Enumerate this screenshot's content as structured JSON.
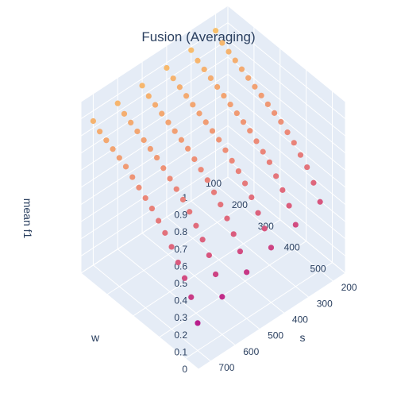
{
  "chart_data": {
    "type": "scatter3d",
    "title": "Fusion (Averaging)",
    "axes": {
      "x": {
        "label": "w",
        "range": [
          100,
          550
        ],
        "ticks": [
          "100",
          "200",
          "300",
          "400",
          "500"
        ],
        "tick_values": [
          100,
          200,
          300,
          400,
          500
        ]
      },
      "y": {
        "label": "s",
        "range": [
          150,
          750
        ],
        "ticks": [
          "200",
          "300",
          "400",
          "500",
          "600",
          "700"
        ],
        "tick_values": [
          200,
          300,
          400,
          500,
          600,
          700
        ]
      },
      "z": {
        "label": "mean f1",
        "range": [
          0,
          1
        ],
        "ticks": [
          "0",
          "0.1",
          "0.2",
          "0.3",
          "0.4",
          "0.5",
          "0.6",
          "0.7",
          "0.8",
          "0.9",
          "1"
        ],
        "tick_values": [
          0,
          0.1,
          0.2,
          0.3,
          0.4,
          0.5,
          0.6,
          0.7,
          0.8,
          0.9,
          1
        ]
      }
    },
    "grid": true,
    "colorscale": [
      "#b91e8c",
      "#d8577e",
      "#ec8a78",
      "#f8c06c"
    ],
    "w_values": [
      100,
      125,
      150,
      175,
      200,
      225,
      250,
      275,
      300,
      325,
      350,
      375,
      400,
      425,
      450,
      475,
      500
    ],
    "s_values": [
      200,
      300,
      400,
      500,
      600,
      700
    ],
    "mean_f1_grid": [
      [
        0.9,
        0.86,
        0.84,
        0.82,
        0.8,
        0.78,
        0.76,
        0.74,
        0.72,
        0.7,
        0.68,
        0.65,
        0.62,
        0.58,
        0.54,
        0.48,
        0.4
      ],
      [
        0.88,
        0.85,
        0.83,
        0.81,
        0.79,
        0.77,
        0.75,
        0.73,
        0.71,
        0.69,
        0.66,
        0.63,
        0.6,
        0.55,
        0.5,
        0.44,
        0.36
      ],
      [
        0.87,
        0.84,
        0.82,
        0.8,
        0.78,
        0.76,
        0.74,
        0.72,
        0.7,
        0.67,
        0.64,
        0.61,
        0.57,
        0.52,
        0.46,
        0.4,
        0.32
      ],
      [
        0.86,
        0.83,
        0.81,
        0.79,
        0.77,
        0.75,
        0.73,
        0.71,
        0.68,
        0.65,
        0.62,
        0.58,
        0.54,
        0.49,
        0.43,
        0.36,
        0.27
      ],
      [
        0.85,
        0.82,
        0.8,
        0.78,
        0.76,
        0.74,
        0.72,
        0.69,
        0.66,
        0.63,
        0.6,
        0.56,
        0.51,
        0.46,
        0.4,
        0.32,
        0.22
      ],
      [
        0.84,
        0.81,
        0.79,
        0.77,
        0.75,
        0.73,
        0.7,
        0.67,
        0.64,
        0.61,
        0.57,
        0.53,
        0.48,
        0.42,
        0.36,
        0.28,
        0.16
      ]
    ]
  }
}
